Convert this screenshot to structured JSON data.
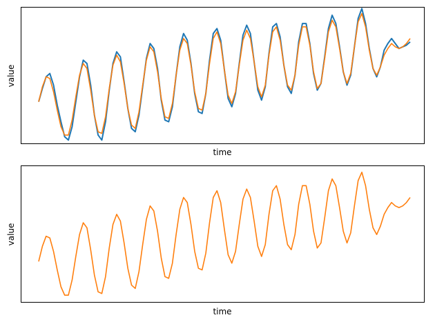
{
  "chart_data": [
    {
      "type": "line",
      "title": "",
      "xlabel": "time",
      "ylabel": "value",
      "x_ticks": "hidden",
      "y_ticks": "hidden",
      "x": [
        0,
        0.5,
        1,
        1.5,
        2,
        2.5,
        3,
        3.5,
        4,
        4.5,
        5,
        5.5,
        6,
        6.5,
        7,
        7.5,
        8,
        8.5,
        9,
        9.5,
        10,
        10.5,
        11,
        11.5,
        12,
        12.5,
        13,
        13.5,
        14,
        14.5,
        15,
        15.5,
        16,
        16.5,
        17,
        17.5,
        18,
        18.5,
        19,
        19.5,
        20,
        20.5,
        21,
        21.5,
        22,
        22.5,
        23,
        23.5,
        24,
        24.5,
        25,
        25.5,
        26,
        26.5,
        27,
        27.5,
        28,
        28.5,
        29,
        29.5,
        30,
        30.5,
        31,
        31.5,
        32,
        32.5,
        33,
        33.5,
        34,
        34.5,
        35,
        35.5,
        36,
        36.5,
        37,
        37.5,
        38,
        38.5,
        39,
        39.5,
        40,
        40.5,
        41,
        41.5,
        42,
        42.5,
        43,
        43.5,
        44,
        44.5,
        45,
        45.5,
        46,
        46.5,
        47,
        47.5,
        48,
        48.5,
        49,
        49.5,
        50
      ],
      "ylim": [
        -1.55,
        2.55
      ],
      "series": [
        {
          "color": "#1f77b4",
          "values": [
            -0.3,
            0.1,
            0.45,
            0.55,
            0.2,
            -0.4,
            -0.9,
            -1.35,
            -1.45,
            -1.05,
            -0.3,
            0.45,
            0.95,
            0.85,
            0.2,
            -0.7,
            -1.3,
            -1.45,
            -0.9,
            0.05,
            0.85,
            1.2,
            1.05,
            0.3,
            -0.5,
            -1.1,
            -1.2,
            -0.7,
            0.15,
            1.0,
            1.45,
            1.3,
            0.7,
            -0.25,
            -0.85,
            -0.9,
            -0.45,
            0.5,
            1.35,
            1.75,
            1.55,
            0.85,
            -0.05,
            -0.6,
            -0.65,
            -0.05,
            0.95,
            1.75,
            1.9,
            1.55,
            0.65,
            -0.2,
            -0.45,
            -0.05,
            0.85,
            1.7,
            2.0,
            1.75,
            0.9,
            0.05,
            -0.25,
            0.15,
            1.15,
            1.95,
            2.05,
            1.65,
            0.8,
            0.15,
            -0.05,
            0.5,
            1.5,
            2.05,
            2.05,
            1.45,
            0.55,
            0.05,
            0.25,
            1.05,
            1.9,
            2.3,
            2.05,
            1.35,
            0.6,
            0.2,
            0.5,
            1.35,
            2.2,
            2.5,
            2.05,
            1.3,
            0.7,
            0.45,
            0.75,
            1.25,
            1.45,
            1.6,
            1.45,
            1.3,
            1.35,
            1.4,
            1.5
          ]
        },
        {
          "color": "#ff7f0e",
          "values": [
            -0.3,
            0.15,
            0.45,
            0.4,
            0.0,
            -0.55,
            -1.05,
            -1.3,
            -1.3,
            -0.85,
            -0.15,
            0.5,
            0.85,
            0.7,
            0.05,
            -0.7,
            -1.2,
            -1.25,
            -0.75,
            0.1,
            0.8,
            1.1,
            0.9,
            0.25,
            -0.5,
            -1.0,
            -1.1,
            -0.6,
            0.2,
            0.95,
            1.35,
            1.2,
            0.6,
            -0.2,
            -0.75,
            -0.8,
            -0.35,
            0.5,
            1.25,
            1.6,
            1.45,
            0.8,
            0.0,
            -0.5,
            -0.55,
            -0.05,
            0.85,
            1.6,
            1.8,
            1.45,
            0.65,
            -0.1,
            -0.35,
            -0.0,
            0.8,
            1.55,
            1.85,
            1.6,
            0.9,
            0.15,
            -0.15,
            0.2,
            1.1,
            1.8,
            1.95,
            1.55,
            0.8,
            0.2,
            0.05,
            0.5,
            1.4,
            1.95,
            1.95,
            1.4,
            0.6,
            0.1,
            0.25,
            1.0,
            1.8,
            2.15,
            1.95,
            1.3,
            0.6,
            0.25,
            0.55,
            1.35,
            2.1,
            2.35,
            1.95,
            1.25,
            0.7,
            0.5,
            0.75,
            1.1,
            1.3,
            1.45,
            1.35,
            1.3,
            1.35,
            1.45,
            1.6
          ]
        }
      ]
    },
    {
      "type": "line",
      "title": "",
      "xlabel": "time",
      "ylabel": "value",
      "x_ticks": "hidden",
      "y_ticks": "hidden",
      "x": [
        0,
        0.5,
        1,
        1.5,
        2,
        2.5,
        3,
        3.5,
        4,
        4.5,
        5,
        5.5,
        6,
        6.5,
        7,
        7.5,
        8,
        8.5,
        9,
        9.5,
        10,
        10.5,
        11,
        11.5,
        12,
        12.5,
        13,
        13.5,
        14,
        14.5,
        15,
        15.5,
        16,
        16.5,
        17,
        17.5,
        18,
        18.5,
        19,
        19.5,
        20,
        20.5,
        21,
        21.5,
        22,
        22.5,
        23,
        23.5,
        24,
        24.5,
        25,
        25.5,
        26,
        26.5,
        27,
        27.5,
        28,
        28.5,
        29,
        29.5,
        30,
        30.5,
        31,
        31.5,
        32,
        32.5,
        33,
        33.5,
        34,
        34.5,
        35,
        35.5,
        36,
        36.5,
        37,
        37.5,
        38,
        38.5,
        39,
        39.5,
        40,
        40.5,
        41,
        41.5,
        42,
        42.5,
        43,
        43.5,
        44,
        44.5,
        45,
        45.5,
        46,
        46.5,
        47,
        47.5,
        48,
        48.5,
        49,
        49.5,
        50
      ],
      "ylim": [
        -1.5,
        2.55
      ],
      "series": [
        {
          "color": "#ff7f0e",
          "values": [
            -0.3,
            0.15,
            0.45,
            0.4,
            0.0,
            -0.55,
            -1.05,
            -1.3,
            -1.3,
            -0.85,
            -0.15,
            0.5,
            0.85,
            0.7,
            0.05,
            -0.7,
            -1.2,
            -1.25,
            -0.75,
            0.1,
            0.8,
            1.1,
            0.9,
            0.25,
            -0.5,
            -1.0,
            -1.1,
            -0.6,
            0.2,
            0.95,
            1.35,
            1.2,
            0.6,
            -0.2,
            -0.75,
            -0.8,
            -0.35,
            0.5,
            1.25,
            1.6,
            1.45,
            0.8,
            0.0,
            -0.5,
            -0.55,
            -0.05,
            0.85,
            1.6,
            1.8,
            1.45,
            0.65,
            -0.1,
            -0.35,
            -0.0,
            0.8,
            1.55,
            1.85,
            1.6,
            0.9,
            0.15,
            -0.15,
            0.2,
            1.1,
            1.8,
            1.95,
            1.55,
            0.8,
            0.2,
            0.05,
            0.5,
            1.4,
            1.95,
            1.95,
            1.4,
            0.6,
            0.1,
            0.25,
            1.0,
            1.8,
            2.15,
            1.95,
            1.3,
            0.6,
            0.25,
            0.55,
            1.35,
            2.1,
            2.35,
            1.95,
            1.25,
            0.7,
            0.5,
            0.75,
            1.1,
            1.3,
            1.45,
            1.35,
            1.3,
            1.35,
            1.45,
            1.6
          ]
        }
      ]
    }
  ]
}
